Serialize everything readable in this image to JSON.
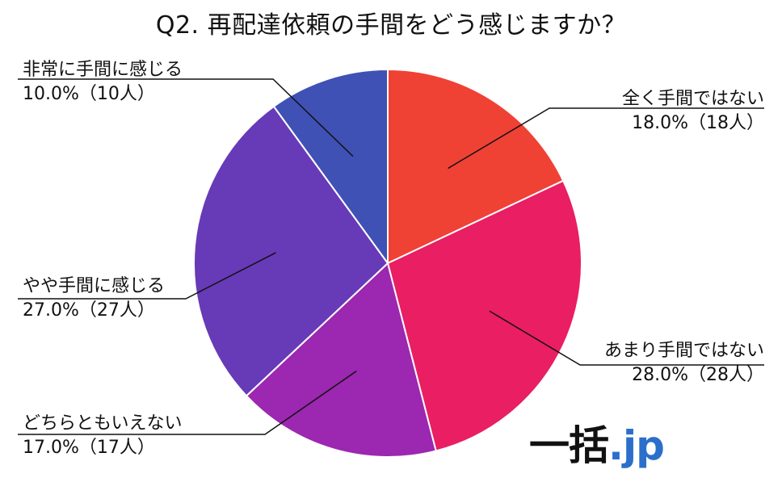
{
  "chart_data": {
    "type": "pie",
    "title": "Q2. 再配達依頼の手間をどう感じますか？",
    "start_angle": "12 o'clock, clockwise",
    "slices": [
      {
        "label": "全く手間ではない",
        "value": 18.0,
        "percent_text": "18.0%（18人）",
        "color": "#f04135"
      },
      {
        "label": "あまり手間ではない",
        "value": 28.0,
        "percent_text": "28.0%（28人）",
        "color": "#e91e63"
      },
      {
        "label": "どちらともいえない",
        "value": 17.0,
        "percent_text": "17.0%（17人）",
        "color": "#9c27b0"
      },
      {
        "label": "やや手間に感じる",
        "value": 27.0,
        "percent_text": "27.0%（27人）",
        "color": "#673ab7"
      },
      {
        "label": "非常に手間に感じる",
        "value": 10.0,
        "percent_text": "10.0%（10人）",
        "color": "#3f51b5"
      }
    ]
  },
  "logo": {
    "text_main": "一括",
    "text_accent": ".jp",
    "accent_color": "#2b6fcb"
  }
}
